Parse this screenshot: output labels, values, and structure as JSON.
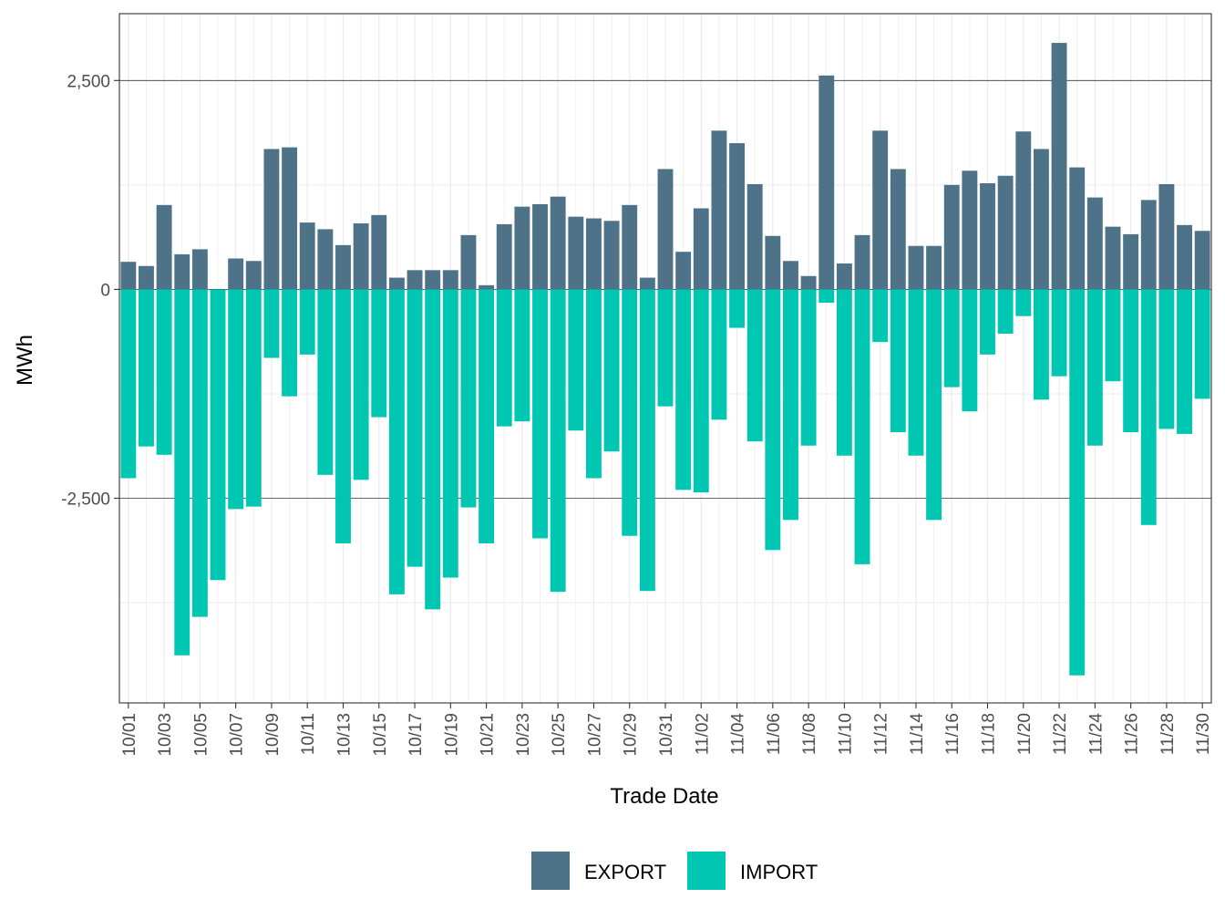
{
  "chart_data": {
    "type": "bar",
    "stacked": "diverging",
    "xlabel": "Trade Date",
    "ylabel": "MWh",
    "ylim": [
      -4950,
      3300
    ],
    "yticks": [
      -2500,
      0,
      2500
    ],
    "ytick_labels": [
      "-2,500",
      "0",
      "2,500"
    ],
    "grid": true,
    "legend_position": "bottom",
    "categories": [
      "10/01",
      "10/02",
      "10/03",
      "10/04",
      "10/05",
      "10/06",
      "10/07",
      "10/08",
      "10/09",
      "10/10",
      "10/11",
      "10/12",
      "10/13",
      "10/14",
      "10/15",
      "10/16",
      "10/17",
      "10/18",
      "10/19",
      "10/20",
      "10/21",
      "10/22",
      "10/23",
      "10/24",
      "10/25",
      "10/26",
      "10/27",
      "10/28",
      "10/29",
      "10/30",
      "10/31",
      "11/01",
      "11/02",
      "11/03",
      "11/04",
      "11/05",
      "11/06",
      "11/07",
      "11/08",
      "11/09",
      "11/10",
      "11/11",
      "11/12",
      "11/13",
      "11/14",
      "11/15",
      "11/16",
      "11/17",
      "11/18",
      "11/19",
      "11/20",
      "11/21",
      "11/22",
      "11/23",
      "11/24",
      "11/25",
      "11/26",
      "11/27",
      "11/28",
      "11/29",
      "11/30"
    ],
    "xtick_labels": [
      "10/01",
      "10/03",
      "10/05",
      "10/07",
      "10/09",
      "10/11",
      "10/13",
      "10/15",
      "10/17",
      "10/19",
      "10/21",
      "10/23",
      "10/25",
      "10/27",
      "10/29",
      "10/31",
      "11/02",
      "11/04",
      "11/06",
      "11/08",
      "11/10",
      "11/12",
      "11/14",
      "11/16",
      "11/18",
      "11/20",
      "11/22",
      "11/24",
      "11/26",
      "11/28",
      "11/30"
    ],
    "series": [
      {
        "name": "EXPORT",
        "color": "#4e7389",
        "values": [
          330,
          280,
          1010,
          420,
          480,
          0,
          370,
          340,
          1680,
          1700,
          800,
          720,
          530,
          790,
          890,
          140,
          230,
          230,
          230,
          650,
          50,
          780,
          990,
          1020,
          1110,
          870,
          850,
          820,
          1010,
          140,
          1440,
          450,
          970,
          1900,
          1750,
          1260,
          640,
          340,
          160,
          2560,
          310,
          650,
          1900,
          1440,
          520,
          520,
          1250,
          1420,
          1270,
          1360,
          1890,
          1680,
          2950,
          1460,
          1100,
          750,
          660,
          1070,
          1260,
          770,
          700
        ]
      },
      {
        "name": "IMPORT",
        "color": "#00c7b2",
        "values": [
          -2260,
          -1880,
          -1980,
          -4380,
          -3920,
          -3480,
          -2630,
          -2600,
          -820,
          -1280,
          -780,
          -2220,
          -3040,
          -2280,
          -1530,
          -3650,
          -3320,
          -3830,
          -3450,
          -2610,
          -3040,
          -1640,
          -1580,
          -2980,
          -3620,
          -1690,
          -2260,
          -1940,
          -2950,
          -3610,
          -1400,
          -2400,
          -2430,
          -1560,
          -460,
          -1820,
          -3120,
          -2760,
          -1870,
          -160,
          -1990,
          -3290,
          -630,
          -1710,
          -1990,
          -2760,
          -1170,
          -1460,
          -780,
          -530,
          -320,
          -1320,
          -1040,
          -4620,
          -1870,
          -1100,
          -1710,
          -2820,
          -1670,
          -1730,
          -1310
        ]
      }
    ]
  }
}
